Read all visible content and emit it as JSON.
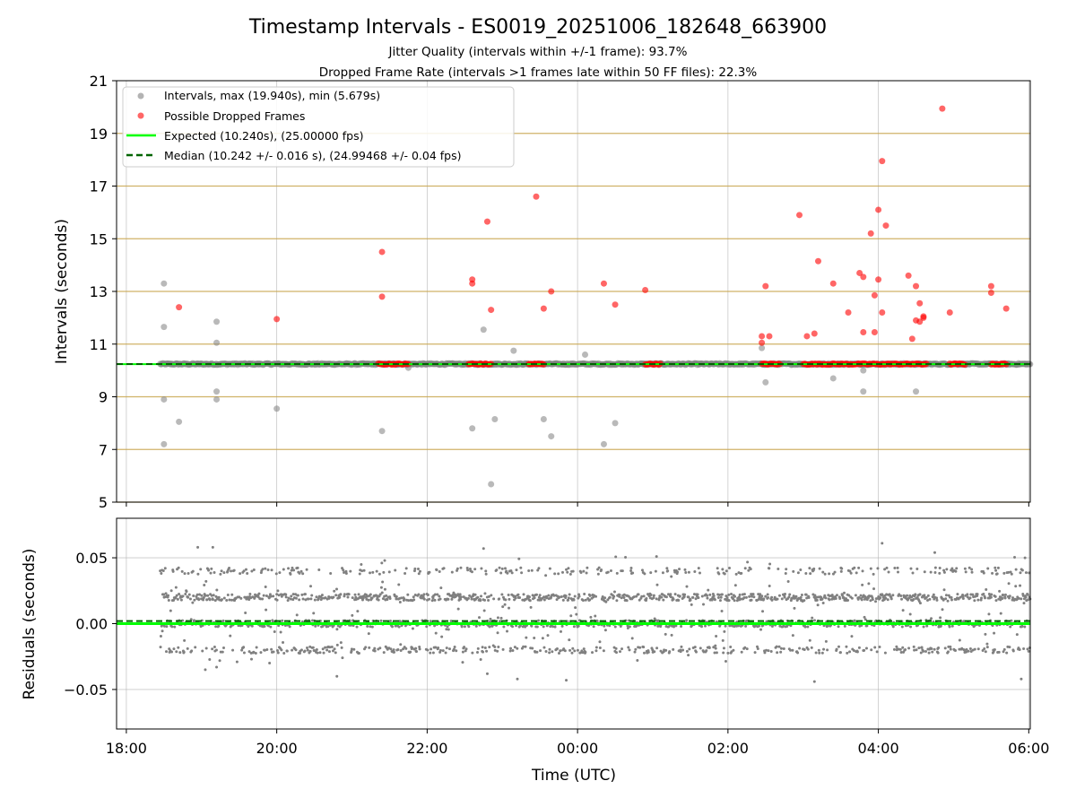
{
  "chart_data": [
    {
      "type": "scatter",
      "panel": "intervals",
      "title": "Timestamp Intervals - ES0019_20251006_182648_663900",
      "subtitle_1": "Jitter Quality (intervals within +/-1 frame): 93.7%",
      "subtitle_2": "Dropped Frame Rate (intervals >1 frames late within 50 FF files): 22.3%",
      "ylabel": "Intervals (seconds)",
      "xlabel": "",
      "xlim_hours": [
        17.87,
        30.02
      ],
      "ylim": [
        5,
        21
      ],
      "yticks": [
        5,
        7,
        9,
        11,
        13,
        15,
        17,
        19,
        21
      ],
      "ytick_labels": [
        "5",
        "7",
        "9",
        "11",
        "13",
        "15",
        "17",
        "19",
        "21"
      ],
      "xticks_hours": [
        18,
        20,
        22,
        24,
        26,
        28,
        30
      ],
      "frame_lines": [
        5,
        7,
        9,
        11,
        13,
        15,
        17,
        19
      ],
      "frame_line_color": "#c8a64e",
      "legend": {
        "position": "upper-left",
        "intervals": "Intervals, max (19.940s), min (5.679s)",
        "dropped": "Possible Dropped Frames",
        "expected": "Expected (10.240s), (25.00000 fps)",
        "median": "Median (10.242 +/- 0.016 s), (24.99468 +/- 0.04 fps)"
      },
      "expected_value": 10.24,
      "median_value": 10.242,
      "colors": {
        "intervals": "#808080",
        "dropped": "#ff0000",
        "expected": "#00ff00",
        "median": "#006400"
      },
      "baseline_range_hours": [
        18.45,
        30.02
      ],
      "baseline_dropped_clusters_hours": [
        [
          21.35,
          21.75
        ],
        [
          22.55,
          22.85
        ],
        [
          23.35,
          23.55
        ],
        [
          24.9,
          25.1
        ],
        [
          26.45,
          26.7
        ],
        [
          27.0,
          28.65
        ],
        [
          28.95,
          29.15
        ],
        [
          29.5,
          29.7
        ]
      ],
      "outliers": [
        [
          18.5,
          13.3
        ],
        [
          18.5,
          11.65
        ],
        [
          18.5,
          8.9
        ],
        [
          18.5,
          7.2
        ],
        [
          18.7,
          8.05
        ],
        [
          19.2,
          11.85
        ],
        [
          19.2,
          11.05
        ],
        [
          19.2,
          9.2
        ],
        [
          19.2,
          8.9
        ],
        [
          20.0,
          8.55
        ],
        [
          21.4,
          7.7
        ],
        [
          21.75,
          10.1
        ],
        [
          22.6,
          7.8
        ],
        [
          22.75,
          11.55
        ],
        [
          22.85,
          5.68
        ],
        [
          22.9,
          8.15
        ],
        [
          23.15,
          10.75
        ],
        [
          23.55,
          8.15
        ],
        [
          23.65,
          7.5
        ],
        [
          24.1,
          10.6
        ],
        [
          24.35,
          7.2
        ],
        [
          24.5,
          8.0
        ],
        [
          26.45,
          10.85
        ],
        [
          26.5,
          9.55
        ],
        [
          27.4,
          9.7
        ],
        [
          27.8,
          10.0
        ],
        [
          27.8,
          9.2
        ],
        [
          28.5,
          9.2
        ]
      ],
      "dropped": [
        [
          18.7,
          12.4
        ],
        [
          20.0,
          11.95
        ],
        [
          21.4,
          14.5
        ],
        [
          21.4,
          12.8
        ],
        [
          22.6,
          13.45
        ],
        [
          22.6,
          13.3
        ],
        [
          22.8,
          15.65
        ],
        [
          22.85,
          12.3
        ],
        [
          23.45,
          16.6
        ],
        [
          23.55,
          12.35
        ],
        [
          23.65,
          13.0
        ],
        [
          24.35,
          13.3
        ],
        [
          24.5,
          12.5
        ],
        [
          24.9,
          13.05
        ],
        [
          26.45,
          11.3
        ],
        [
          26.45,
          11.05
        ],
        [
          26.5,
          13.2
        ],
        [
          26.55,
          11.3
        ],
        [
          26.95,
          15.9
        ],
        [
          27.05,
          11.3
        ],
        [
          27.15,
          11.4
        ],
        [
          27.2,
          14.15
        ],
        [
          27.4,
          13.3
        ],
        [
          27.6,
          12.2
        ],
        [
          27.75,
          13.7
        ],
        [
          27.8,
          13.55
        ],
        [
          27.8,
          11.45
        ],
        [
          27.9,
          15.2
        ],
        [
          27.95,
          12.85
        ],
        [
          27.95,
          11.45
        ],
        [
          28.0,
          16.1
        ],
        [
          28.0,
          13.45
        ],
        [
          28.05,
          17.95
        ],
        [
          28.05,
          12.2
        ],
        [
          28.1,
          15.5
        ],
        [
          28.4,
          13.6
        ],
        [
          28.45,
          11.2
        ],
        [
          28.5,
          13.2
        ],
        [
          28.5,
          11.9
        ],
        [
          28.55,
          12.55
        ],
        [
          28.55,
          11.85
        ],
        [
          28.6,
          12.05
        ],
        [
          28.6,
          12.0
        ],
        [
          28.85,
          19.94
        ],
        [
          28.95,
          12.2
        ],
        [
          29.5,
          13.2
        ],
        [
          29.5,
          12.95
        ],
        [
          29.7,
          12.35
        ]
      ]
    },
    {
      "type": "scatter",
      "panel": "residuals",
      "ylabel": "Residuals (seconds)",
      "xlabel": "Time (UTC)",
      "xlim_hours": [
        17.87,
        30.02
      ],
      "ylim": [
        -0.08,
        0.08
      ],
      "yticks": [
        -0.05,
        0.0,
        0.05
      ],
      "ytick_labels": [
        "−0.05",
        "0.00",
        "0.05"
      ],
      "xticks_hours": [
        18,
        20,
        22,
        24,
        26,
        28,
        30
      ],
      "xtick_labels": [
        "18:00",
        "20:00",
        "22:00",
        "00:00",
        "02:00",
        "04:00",
        "06:00"
      ],
      "bands": [
        0.04,
        0.02,
        0.0,
        -0.02
      ],
      "expected_residual": 0.0,
      "median_residual": 0.002,
      "notable_points": [
        [
          18.95,
          0.058
        ],
        [
          19.15,
          0.058
        ],
        [
          19.05,
          -0.035
        ],
        [
          19.2,
          -0.033
        ],
        [
          20.8,
          -0.04
        ],
        [
          22.75,
          0.057
        ],
        [
          22.8,
          -0.038
        ],
        [
          23.2,
          -0.042
        ],
        [
          23.85,
          -0.043
        ],
        [
          25.05,
          0.051
        ],
        [
          27.15,
          -0.044
        ],
        [
          28.05,
          0.061
        ],
        [
          28.75,
          0.054
        ],
        [
          29.9,
          -0.042
        ],
        [
          29.95,
          0.05
        ]
      ]
    }
  ]
}
